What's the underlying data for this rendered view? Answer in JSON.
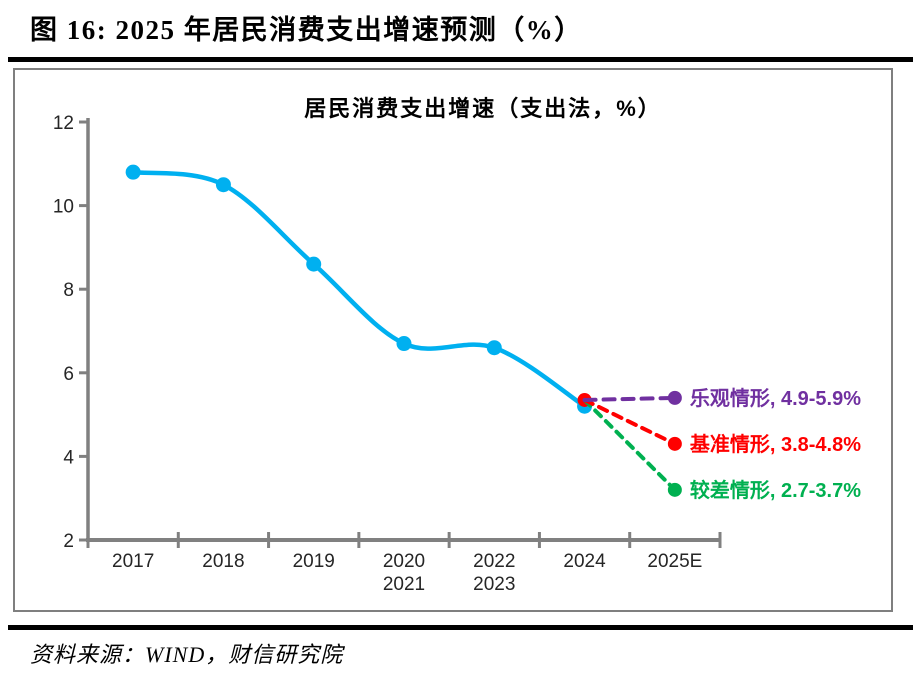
{
  "page": {
    "title": "图 16: 2025 年居民消费支出增速预测（%）",
    "source": "资料来源：WIND，财信研究院"
  },
  "chart_data": {
    "type": "line",
    "title": "居民消费支出增速（支出法，%）",
    "categories": [
      "2017",
      "2018",
      "2019",
      "2020\n2021",
      "2022\n2023",
      "2024",
      "2025E"
    ],
    "series": [
      {
        "key": "actual",
        "name": "居民消费支出增速",
        "color": "#00b0f0",
        "line_style": "solid",
        "values": [
          10.8,
          10.5,
          8.6,
          6.7,
          6.6,
          5.2,
          null
        ]
      },
      {
        "key": "optimistic",
        "name": "乐观情形",
        "label": "乐观情形, 4.9-5.9%",
        "range": "4.9-5.9%",
        "color": "#7030a0",
        "line_style": "dashed",
        "values": [
          null,
          null,
          null,
          null,
          null,
          5.35,
          5.4
        ]
      },
      {
        "key": "baseline",
        "name": "基准情形",
        "label": "基准情形, 3.8-4.8%",
        "range": "3.8-4.8%",
        "color": "#ff0000",
        "line_style": "dashed",
        "start_marker": true,
        "values": [
          null,
          null,
          null,
          null,
          null,
          5.35,
          4.3
        ]
      },
      {
        "key": "pessimistic",
        "name": "较差情形",
        "label": "较差情形, 2.7-3.7%",
        "range": "2.7-3.7%",
        "color": "#00b050",
        "line_style": "dashed",
        "values": [
          null,
          null,
          null,
          null,
          null,
          5.35,
          3.2
        ]
      }
    ],
    "ylim": [
      2,
      12
    ],
    "yticks": [
      2,
      4,
      6,
      8,
      10,
      12
    ],
    "grid": false,
    "legend_position": "right-of-endpoints",
    "axis_color": "#808080",
    "tick_label_color": "#262626"
  }
}
